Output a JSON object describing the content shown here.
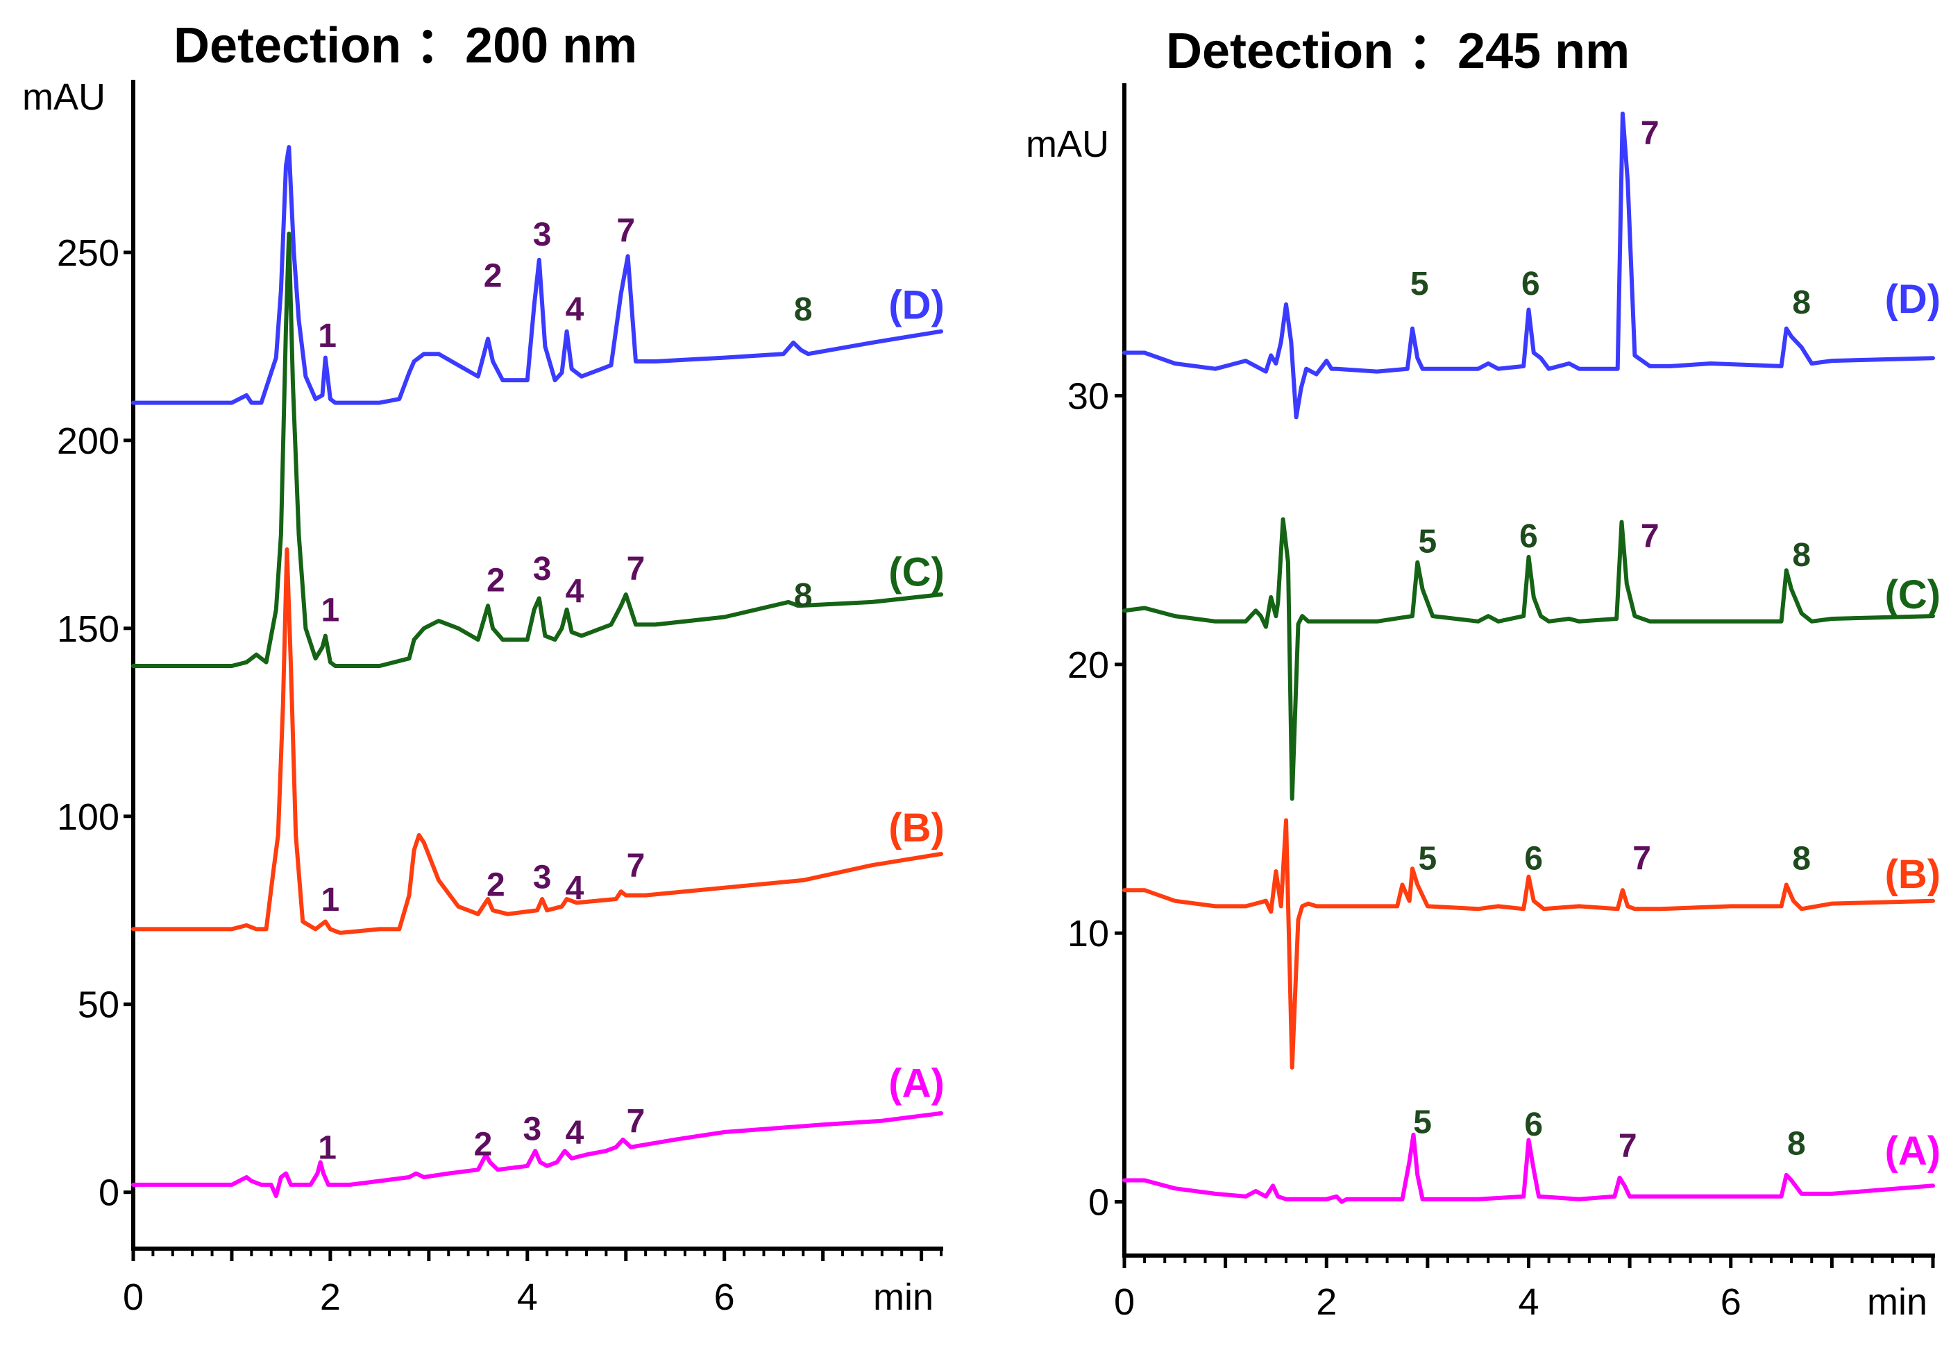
{
  "chart_data": [
    {
      "type": "line",
      "title": "Detection ：200 nm",
      "ylabel": "mAU",
      "xlabel": "min",
      "xlim": [
        0,
        8.2
      ],
      "ylim": [
        -15,
        295
      ],
      "xticks": [
        0,
        2,
        4,
        6
      ],
      "yticks": [
        0,
        50,
        100,
        150,
        200,
        250
      ],
      "series": [
        {
          "name": "(D)",
          "color": "#3b3bff",
          "label_x": 7.95,
          "label_y": 236,
          "x": [
            0,
            0.5,
            1.0,
            1.15,
            1.2,
            1.3,
            1.45,
            1.5,
            1.55,
            1.58,
            1.63,
            1.68,
            1.75,
            1.85,
            1.92,
            1.95,
            2.0,
            2.05,
            2.2,
            2.5,
            2.7,
            2.8,
            2.85,
            2.95,
            3.1,
            3.3,
            3.5,
            3.6,
            3.65,
            3.75,
            4.0,
            4.07,
            4.12,
            4.18,
            4.28,
            4.35,
            4.4,
            4.45,
            4.55,
            4.75,
            4.85,
            4.95,
            5.02,
            5.1,
            5.3,
            6.0,
            6.6,
            6.7,
            6.78,
            6.85,
            7.5,
            8.2
          ],
          "y": [
            210,
            210,
            210,
            212,
            210,
            210,
            222,
            240,
            273,
            278,
            250,
            232,
            217,
            211,
            212,
            222,
            211,
            210,
            210,
            210,
            211,
            218,
            221,
            223,
            223,
            220,
            217,
            227,
            221,
            216,
            216,
            236,
            248,
            225,
            216,
            218,
            229,
            219,
            217,
            219,
            220,
            239,
            249,
            221,
            221,
            222,
            223,
            226,
            224,
            223,
            226,
            229
          ]
        },
        {
          "name": "(C)",
          "color": "#156315",
          "label_x": 7.95,
          "label_y": 165,
          "x": [
            0,
            0.5,
            1.0,
            1.15,
            1.25,
            1.35,
            1.45,
            1.5,
            1.55,
            1.58,
            1.62,
            1.68,
            1.75,
            1.85,
            1.92,
            1.95,
            2.0,
            2.05,
            2.2,
            2.5,
            2.8,
            2.85,
            2.95,
            3.1,
            3.3,
            3.5,
            3.6,
            3.65,
            3.75,
            4.0,
            4.07,
            4.12,
            4.18,
            4.28,
            4.35,
            4.4,
            4.45,
            4.55,
            4.75,
            4.85,
            4.95,
            5.0,
            5.1,
            5.3,
            6.0,
            6.65,
            6.75,
            7.5,
            8.2
          ],
          "y": [
            140,
            140,
            140,
            141,
            143,
            141,
            155,
            175,
            230,
            255,
            215,
            175,
            150,
            142,
            145,
            148,
            141,
            140,
            140,
            140,
            142,
            147,
            150,
            152,
            150,
            147,
            156,
            150,
            147,
            147,
            155,
            158,
            148,
            147,
            150,
            155,
            149,
            148,
            150,
            151,
            156,
            159,
            151,
            151,
            153,
            157,
            156,
            157,
            159
          ]
        },
        {
          "name": "(B)",
          "color": "#ff3d0f",
          "label_x": 7.95,
          "label_y": 97,
          "x": [
            0,
            0.5,
            1.0,
            1.15,
            1.25,
            1.35,
            1.42,
            1.47,
            1.52,
            1.56,
            1.6,
            1.65,
            1.72,
            1.85,
            1.95,
            2.0,
            2.1,
            2.5,
            2.7,
            2.8,
            2.85,
            2.9,
            2.95,
            3.1,
            3.3,
            3.5,
            3.6,
            3.65,
            3.8,
            4.1,
            4.15,
            4.2,
            4.35,
            4.4,
            4.5,
            4.9,
            4.95,
            5.0,
            5.2,
            6.0,
            6.8,
            7.5,
            8.2
          ],
          "y": [
            70,
            70,
            70,
            71,
            70,
            70,
            85,
            95,
            130,
            171,
            140,
            95,
            72,
            70,
            72,
            70,
            69,
            70,
            70,
            79,
            91,
            95,
            93,
            83,
            76,
            74,
            78,
            75,
            74,
            75,
            78,
            75,
            76,
            78,
            77,
            78,
            80,
            79,
            79,
            81,
            83,
            87,
            90
          ]
        },
        {
          "name": "(A)",
          "color": "#ff00ff",
          "label_x": 7.95,
          "label_y": 29,
          "x": [
            0,
            0.5,
            1.0,
            1.15,
            1.2,
            1.3,
            1.4,
            1.45,
            1.5,
            1.55,
            1.6,
            1.8,
            1.87,
            1.9,
            1.93,
            1.98,
            2.2,
            2.5,
            2.8,
            2.87,
            2.95,
            3.2,
            3.5,
            3.58,
            3.62,
            3.7,
            4.0,
            4.08,
            4.13,
            4.2,
            4.3,
            4.38,
            4.45,
            4.6,
            4.8,
            4.9,
            4.97,
            5.05,
            5.5,
            6.0,
            7.0,
            7.6,
            8.2
          ],
          "y": [
            2,
            2,
            2,
            4,
            3,
            2,
            2,
            -1,
            4,
            5,
            2,
            2,
            5,
            8,
            5,
            2,
            2,
            3,
            4,
            5,
            4,
            5,
            6,
            10,
            8,
            6,
            7,
            11,
            8,
            7,
            8,
            11,
            9,
            10,
            11,
            12,
            14,
            12,
            14,
            16,
            18,
            19,
            21
          ]
        }
      ],
      "peak_labels": [
        {
          "text": "1",
          "x": 1.97,
          "y": 228,
          "color": "#5e0e5e"
        },
        {
          "text": "2",
          "x": 3.65,
          "y": 244,
          "color": "#5e0e5e"
        },
        {
          "text": "3",
          "x": 4.15,
          "y": 255,
          "color": "#5e0e5e"
        },
        {
          "text": "4",
          "x": 4.48,
          "y": 235,
          "color": "#5e0e5e"
        },
        {
          "text": "7",
          "x": 5.0,
          "y": 256,
          "color": "#5e0e5e"
        },
        {
          "text": "8",
          "x": 6.8,
          "y": 235,
          "color": "#1e4a1e"
        },
        {
          "text": "1",
          "x": 2.0,
          "y": 155,
          "color": "#5e0e5e"
        },
        {
          "text": "2",
          "x": 3.68,
          "y": 163,
          "color": "#5e0e5e"
        },
        {
          "text": "3",
          "x": 4.15,
          "y": 166,
          "color": "#5e0e5e"
        },
        {
          "text": "4",
          "x": 4.48,
          "y": 160,
          "color": "#5e0e5e"
        },
        {
          "text": "7",
          "x": 5.1,
          "y": 166,
          "color": "#5e0e5e"
        },
        {
          "text": "8",
          "x": 6.8,
          "y": 159,
          "color": "#1e4a1e"
        },
        {
          "text": "1",
          "x": 2.0,
          "y": 78,
          "color": "#5e0e5e"
        },
        {
          "text": "2",
          "x": 3.68,
          "y": 82,
          "color": "#5e0e5e"
        },
        {
          "text": "3",
          "x": 4.15,
          "y": 84,
          "color": "#5e0e5e"
        },
        {
          "text": "4",
          "x": 4.48,
          "y": 81,
          "color": "#5e0e5e"
        },
        {
          "text": "7",
          "x": 5.1,
          "y": 87,
          "color": "#5e0e5e"
        },
        {
          "text": "1",
          "x": 1.97,
          "y": 12,
          "color": "#5e0e5e"
        },
        {
          "text": "2",
          "x": 3.55,
          "y": 13,
          "color": "#5e0e5e"
        },
        {
          "text": "3",
          "x": 4.05,
          "y": 17,
          "color": "#5e0e5e"
        },
        {
          "text": "4",
          "x": 4.48,
          "y": 16,
          "color": "#5e0e5e"
        },
        {
          "text": "7",
          "x": 5.1,
          "y": 19,
          "color": "#5e0e5e"
        }
      ]
    },
    {
      "type": "line",
      "title": "Detection ：245 nm",
      "ylabel": "mAU",
      "xlabel": "min",
      "xlim": [
        0,
        8.0
      ],
      "ylim": [
        -2,
        41.5
      ],
      "xticks": [
        0,
        2,
        4,
        6
      ],
      "yticks": [
        0,
        10,
        20,
        30
      ],
      "series": [
        {
          "name": "(D)",
          "color": "#3b3bff",
          "label_x": 7.8,
          "label_y": 33.6,
          "x": [
            0,
            0.2,
            0.5,
            0.9,
            1.2,
            1.3,
            1.4,
            1.45,
            1.5,
            1.55,
            1.6,
            1.65,
            1.7,
            1.75,
            1.8,
            1.9,
            2.0,
            2.05,
            2.1,
            2.5,
            2.8,
            2.85,
            2.9,
            2.95,
            3.1,
            3.5,
            3.6,
            3.7,
            3.95,
            4.0,
            4.05,
            4.12,
            4.2,
            4.4,
            4.5,
            4.88,
            4.93,
            4.98,
            5.05,
            5.2,
            5.4,
            5.8,
            6.5,
            6.55,
            6.6,
            6.7,
            6.8,
            7.0,
            8.0
          ],
          "y": [
            31.6,
            31.6,
            31.2,
            31.0,
            31.3,
            31.1,
            30.9,
            31.5,
            31.2,
            32.0,
            33.4,
            32.0,
            29.2,
            30.3,
            31.0,
            30.8,
            31.3,
            31.0,
            31.0,
            30.9,
            31.0,
            32.5,
            31.4,
            31.0,
            31.0,
            31.0,
            31.2,
            31.0,
            31.1,
            33.2,
            31.6,
            31.4,
            31.0,
            31.2,
            31.0,
            31.0,
            40.5,
            38.0,
            31.5,
            31.1,
            31.1,
            31.2,
            31.1,
            32.5,
            32.2,
            31.8,
            31.2,
            31.3,
            31.4
          ]
        },
        {
          "name": "(C)",
          "color": "#156315",
          "label_x": 7.8,
          "label_y": 22.6,
          "x": [
            0,
            0.2,
            0.5,
            0.9,
            1.2,
            1.3,
            1.35,
            1.4,
            1.45,
            1.5,
            1.52,
            1.57,
            1.62,
            1.66,
            1.72,
            1.76,
            1.82,
            1.9,
            2.0,
            2.5,
            2.85,
            2.9,
            2.95,
            3.05,
            3.5,
            3.6,
            3.7,
            3.95,
            4.0,
            4.05,
            4.12,
            4.2,
            4.4,
            4.5,
            4.87,
            4.92,
            4.97,
            5.05,
            5.2,
            5.6,
            6.5,
            6.55,
            6.6,
            6.7,
            6.8,
            7.0,
            8.0
          ],
          "y": [
            22.0,
            22.1,
            21.8,
            21.6,
            21.6,
            22.0,
            21.8,
            21.4,
            22.5,
            21.8,
            22.3,
            25.4,
            23.8,
            15.0,
            21.5,
            21.8,
            21.6,
            21.6,
            21.6,
            21.6,
            21.8,
            23.8,
            22.8,
            21.8,
            21.6,
            21.8,
            21.6,
            21.8,
            24.0,
            22.5,
            21.8,
            21.6,
            21.7,
            21.6,
            21.7,
            25.3,
            23.0,
            21.8,
            21.6,
            21.6,
            21.6,
            23.5,
            22.8,
            21.9,
            21.6,
            21.7,
            21.8
          ]
        },
        {
          "name": "(B)",
          "color": "#ff3d0f",
          "label_x": 7.8,
          "label_y": 12.2,
          "x": [
            0,
            0.2,
            0.5,
            0.9,
            1.2,
            1.3,
            1.4,
            1.45,
            1.5,
            1.55,
            1.6,
            1.66,
            1.72,
            1.76,
            1.82,
            1.9,
            2.0,
            2.5,
            2.7,
            2.75,
            2.82,
            2.85,
            2.9,
            3.0,
            3.5,
            3.7,
            3.95,
            4.0,
            4.05,
            4.15,
            4.5,
            4.88,
            4.93,
            4.98,
            5.05,
            5.3,
            6.0,
            6.5,
            6.55,
            6.62,
            6.7,
            7.0,
            8.0
          ],
          "y": [
            11.6,
            11.6,
            11.2,
            11.0,
            11.0,
            11.1,
            11.2,
            10.8,
            12.3,
            11.0,
            14.2,
            5.0,
            10.5,
            11.0,
            11.1,
            11.0,
            11.0,
            11.0,
            11.0,
            11.8,
            11.2,
            12.4,
            11.8,
            11.0,
            10.9,
            11.0,
            10.9,
            12.1,
            11.2,
            10.9,
            11.0,
            10.9,
            11.6,
            11.0,
            10.9,
            10.9,
            11.0,
            11.0,
            11.8,
            11.2,
            10.9,
            11.1,
            11.2
          ]
        },
        {
          "name": "(A)",
          "color": "#ff00ff",
          "label_x": 7.8,
          "label_y": 1.9,
          "x": [
            0,
            0.2,
            0.5,
            0.9,
            1.2,
            1.3,
            1.4,
            1.47,
            1.52,
            1.6,
            2.0,
            2.1,
            2.15,
            2.2,
            2.5,
            2.75,
            2.82,
            2.86,
            2.9,
            2.95,
            3.5,
            3.95,
            4.0,
            4.05,
            4.1,
            4.5,
            4.85,
            4.9,
            4.95,
            5.0,
            5.5,
            6.0,
            6.5,
            6.55,
            6.6,
            6.7,
            7.0,
            8.0
          ],
          "y": [
            0.8,
            0.8,
            0.5,
            0.3,
            0.2,
            0.4,
            0.2,
            0.6,
            0.2,
            0.1,
            0.1,
            0.2,
            0.0,
            0.1,
            0.1,
            0.1,
            1.5,
            2.5,
            1.0,
            0.1,
            0.1,
            0.2,
            2.3,
            1.2,
            0.2,
            0.1,
            0.2,
            0.9,
            0.6,
            0.2,
            0.2,
            0.2,
            0.2,
            1.0,
            0.8,
            0.3,
            0.3,
            0.6
          ]
        }
      ],
      "peak_labels": [
        {
          "text": "7",
          "x": 5.2,
          "y": 39.8,
          "color": "#5e0e5e"
        },
        {
          "text": "5",
          "x": 2.92,
          "y": 34.2,
          "color": "#1e4a1e"
        },
        {
          "text": "6",
          "x": 4.02,
          "y": 34.2,
          "color": "#1e4a1e"
        },
        {
          "text": "8",
          "x": 6.7,
          "y": 33.5,
          "color": "#1e4a1e"
        },
        {
          "text": "5",
          "x": 3.0,
          "y": 24.6,
          "color": "#1e4a1e"
        },
        {
          "text": "6",
          "x": 4.0,
          "y": 24.8,
          "color": "#1e4a1e"
        },
        {
          "text": "7",
          "x": 5.2,
          "y": 24.8,
          "color": "#5e0e5e"
        },
        {
          "text": "8",
          "x": 6.7,
          "y": 24.1,
          "color": "#1e4a1e"
        },
        {
          "text": "5",
          "x": 3.0,
          "y": 12.8,
          "color": "#1e4a1e"
        },
        {
          "text": "6",
          "x": 4.05,
          "y": 12.8,
          "color": "#1e4a1e"
        },
        {
          "text": "7",
          "x": 5.12,
          "y": 12.8,
          "color": "#5e0e5e"
        },
        {
          "text": "8",
          "x": 6.7,
          "y": 12.8,
          "color": "#1e4a1e"
        },
        {
          "text": "5",
          "x": 2.95,
          "y": 3.0,
          "color": "#1e4a1e"
        },
        {
          "text": "6",
          "x": 4.05,
          "y": 2.9,
          "color": "#1e4a1e"
        },
        {
          "text": "7",
          "x": 4.98,
          "y": 2.1,
          "color": "#5e0e5e"
        },
        {
          "text": "8",
          "x": 6.65,
          "y": 2.2,
          "color": "#1e4a1e"
        }
      ]
    }
  ]
}
